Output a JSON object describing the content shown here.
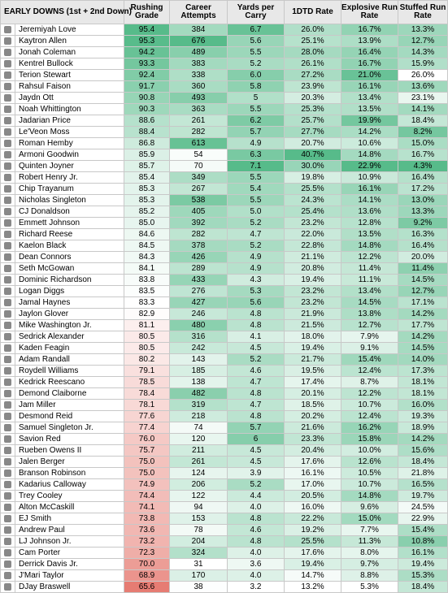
{
  "table": {
    "title": "EARLY DOWNS (1st + 2nd Down)",
    "columns": [
      "Rushing Grade",
      "Career Attempts",
      "Yards per Carry",
      "1DTD Rate",
      "Explosive Run Rate",
      "Stuffed Run Rate"
    ],
    "rows": [
      [
        "Jeremiyah Love",
        "95.4",
        "384",
        "6.7",
        "26.0%",
        "16.7%",
        "13.3%"
      ],
      [
        "Kaytron Allen",
        "95.3",
        "676",
        "5.6",
        "25.1%",
        "13.9%",
        "12.7%"
      ],
      [
        "Jonah Coleman",
        "94.2",
        "489",
        "5.5",
        "28.0%",
        "16.4%",
        "14.3%"
      ],
      [
        "Kentrel Bullock",
        "93.3",
        "383",
        "5.2",
        "26.1%",
        "16.7%",
        "15.9%"
      ],
      [
        "Terion Stewart",
        "92.4",
        "338",
        "6.0",
        "27.2%",
        "21.0%",
        "26.0%"
      ],
      [
        "Rahsul Faison",
        "91.7",
        "360",
        "5.8",
        "23.9%",
        "16.1%",
        "13.6%"
      ],
      [
        "Jaydn Ott",
        "90.8",
        "493",
        "5",
        "20.3%",
        "13.4%",
        "23.1%"
      ],
      [
        "Noah Whittington",
        "90.3",
        "363",
        "5.5",
        "25.3%",
        "13.5%",
        "14.1%"
      ],
      [
        "Jadarian Price",
        "88.6",
        "261",
        "6.2",
        "25.7%",
        "19.9%",
        "18.4%"
      ],
      [
        "Le'Veon Moss",
        "88.4",
        "282",
        "5.7",
        "27.7%",
        "14.2%",
        "8.2%"
      ],
      [
        "Roman Hemby",
        "86.8",
        "613",
        "4.9",
        "20.7%",
        "10.6%",
        "15.0%"
      ],
      [
        "Armoni Goodwin",
        "85.9",
        "54",
        "6.3",
        "40.7%",
        "14.8%",
        "16.7%"
      ],
      [
        "Quinten Joyner",
        "85.7",
        "70",
        "7.1",
        "30.0%",
        "22.9%",
        "4.3%"
      ],
      [
        "Robert Henry Jr.",
        "85.4",
        "349",
        "5.5",
        "19.8%",
        "10.9%",
        "16.4%"
      ],
      [
        "Chip Trayanum",
        "85.3",
        "267",
        "5.4",
        "25.5%",
        "16.1%",
        "17.2%"
      ],
      [
        "Nicholas Singleton",
        "85.3",
        "538",
        "5.5",
        "24.3%",
        "14.1%",
        "13.0%"
      ],
      [
        "CJ Donaldson",
        "85.2",
        "405",
        "5.0",
        "25.4%",
        "13.6%",
        "13.3%"
      ],
      [
        "Emmett Johnson",
        "85.0",
        "392",
        "5.2",
        "23.2%",
        "12.8%",
        "9.2%"
      ],
      [
        "Richard Reese",
        "84.6",
        "282",
        "4.7",
        "22.0%",
        "13.5%",
        "16.3%"
      ],
      [
        "Kaelon Black",
        "84.5",
        "378",
        "5.2",
        "22.8%",
        "14.8%",
        "16.4%"
      ],
      [
        "Dean Connors",
        "84.3",
        "426",
        "4.9",
        "21.1%",
        "12.2%",
        "20.0%"
      ],
      [
        "Seth McGowan",
        "84.1",
        "289",
        "4.9",
        "20.8%",
        "11.4%",
        "11.4%"
      ],
      [
        "Dominic Richardson",
        "83.8",
        "433",
        "4.3",
        "19.4%",
        "11.1%",
        "14.5%"
      ],
      [
        "Logan Diggs",
        "83.5",
        "276",
        "5.3",
        "23.2%",
        "13.4%",
        "12.7%"
      ],
      [
        "Jamal Haynes",
        "83.3",
        "427",
        "5.6",
        "23.2%",
        "14.5%",
        "17.1%"
      ],
      [
        "Jaylon Glover",
        "82.9",
        "246",
        "4.8",
        "21.9%",
        "13.8%",
        "14.2%"
      ],
      [
        "Mike Washington Jr.",
        "81.1",
        "480",
        "4.8",
        "21.5%",
        "12.7%",
        "17.7%"
      ],
      [
        "Sedrick Alexander",
        "80.5",
        "316",
        "4.1",
        "18.0%",
        "7.9%",
        "14.2%"
      ],
      [
        "Kaden Feagin",
        "80.5",
        "242",
        "4.5",
        "19.4%",
        "9.1%",
        "14.5%"
      ],
      [
        "Adam Randall",
        "80.2",
        "143",
        "5.2",
        "21.7%",
        "15.4%",
        "14.0%"
      ],
      [
        "Roydell Williams",
        "79.1",
        "185",
        "4.6",
        "19.5%",
        "12.4%",
        "17.3%"
      ],
      [
        "Kedrick Reescano",
        "78.5",
        "138",
        "4.7",
        "17.4%",
        "8.7%",
        "18.1%"
      ],
      [
        "Demond Claiborne",
        "78.4",
        "482",
        "4.8",
        "20.1%",
        "12.2%",
        "18.1%"
      ],
      [
        "Jam Miller",
        "78.1",
        "319",
        "4.7",
        "18.5%",
        "10.7%",
        "16.0%"
      ],
      [
        "Desmond Reid",
        "77.6",
        "218",
        "4.8",
        "20.2%",
        "12.4%",
        "19.3%"
      ],
      [
        "Samuel Singleton Jr.",
        "77.4",
        "74",
        "5.7",
        "21.6%",
        "16.2%",
        "18.9%"
      ],
      [
        "Savion Red",
        "76.0",
        "120",
        "6",
        "23.3%",
        "15.8%",
        "14.2%"
      ],
      [
        "Rueben Owens II",
        "75.7",
        "211",
        "4.5",
        "20.4%",
        "10.0%",
        "15.6%"
      ],
      [
        "Jalen Berger",
        "75.0",
        "261",
        "4.5",
        "17.6%",
        "12.6%",
        "18.4%"
      ],
      [
        "Branson Robinson",
        "75.0",
        "124",
        "3.9",
        "16.1%",
        "10.5%",
        "21.8%"
      ],
      [
        "Kadarius Calloway",
        "74.9",
        "206",
        "5.2",
        "17.0%",
        "10.7%",
        "16.5%"
      ],
      [
        "Trey Cooley",
        "74.4",
        "122",
        "4.4",
        "20.5%",
        "14.8%",
        "19.7%"
      ],
      [
        "Alton McCaskill",
        "74.1",
        "94",
        "4.0",
        "16.0%",
        "9.6%",
        "24.5%"
      ],
      [
        "EJ Smith",
        "73.8",
        "153",
        "4.8",
        "22.2%",
        "15.0%",
        "22.9%"
      ],
      [
        "Andrew Paul",
        "73.6",
        "78",
        "4.6",
        "19.2%",
        "7.7%",
        "15.4%"
      ],
      [
        "LJ Johnson Jr.",
        "73.2",
        "204",
        "4.8",
        "25.5%",
        "11.3%",
        "10.8%"
      ],
      [
        "Cam Porter",
        "72.3",
        "324",
        "4.0",
        "17.6%",
        "8.0%",
        "16.1%"
      ],
      [
        "Derrick Davis Jr.",
        "70.0",
        "31",
        "3.6",
        "19.4%",
        "9.7%",
        "19.4%"
      ],
      [
        "J'Mari Taylor",
        "68.9",
        "170",
        "4.0",
        "14.7%",
        "8.8%",
        "15.3%"
      ],
      [
        "DJay Braswell",
        "65.6",
        "38",
        "3.2",
        "13.2%",
        "5.3%",
        "18.4%"
      ]
    ]
  }
}
